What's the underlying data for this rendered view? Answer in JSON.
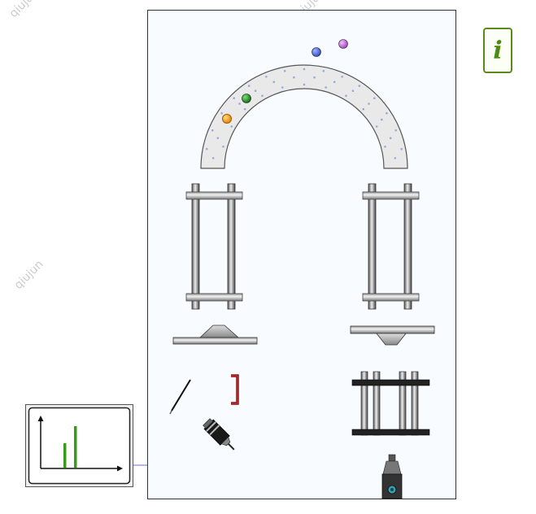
{
  "info_button": {
    "label": "i"
  },
  "watermarks": [
    "qiujun",
    "qiujun",
    "qiujun",
    "qiujun",
    "qiujun"
  ],
  "colors": {
    "panel_border": "#333333",
    "info_green": "#4e8a12",
    "spectrum_bar": "#3a9a1a",
    "connector": "#6a6adc"
  },
  "spectrum": {
    "icon": "bar-spectrum-icon",
    "bars": [
      0.5,
      0.85
    ]
  },
  "spheres": [
    {
      "name": "blue-sphere",
      "color": "#3b5bd6"
    },
    {
      "name": "purple-sphere",
      "color": "#b05ad0"
    },
    {
      "name": "green-sphere",
      "color": "#1a8a1a"
    },
    {
      "name": "orange-sphere",
      "color": "#f0a020"
    }
  ]
}
